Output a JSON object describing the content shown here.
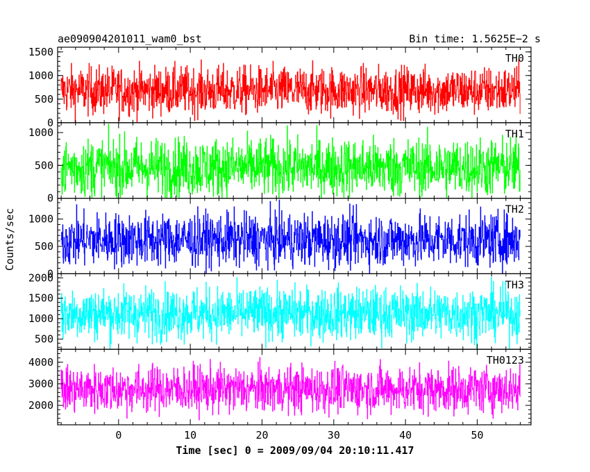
{
  "header": {
    "title": "ae090904201011_wam0_bst",
    "bin_time": "Bin time: 1.5625E−2 s"
  },
  "chart_data": {
    "type": "line",
    "xlabel": "Time [sec] 0 = 2009/09/04 20:10:11.417",
    "ylabel": "Counts/sec",
    "xlim": [
      -8.5,
      57.5
    ],
    "x_range_data": [
      -8,
      56
    ],
    "x_ticks": [
      0,
      10,
      20,
      30,
      40,
      50
    ],
    "x_tick_labels": [
      "0",
      "10",
      "20",
      "30",
      "40",
      "50"
    ],
    "panels": [
      {
        "name": "TH0",
        "color": "#ff0000",
        "ylim": [
          0,
          1600
        ],
        "y_ticks": [
          0,
          500,
          1000,
          1500
        ],
        "y_tick_labels": [
          "0",
          "500",
          "1000",
          "1500"
        ],
        "mean": 680,
        "spread": 260
      },
      {
        "name": "TH1",
        "color": "#00ff00",
        "ylim": [
          0,
          1150
        ],
        "y_ticks": [
          0,
          500,
          1000
        ],
        "y_tick_labels": [
          "0",
          "500",
          "1000"
        ],
        "mean": 470,
        "spread": 230
      },
      {
        "name": "TH2",
        "color": "#0000ff",
        "ylim": [
          0,
          1380
        ],
        "y_ticks": [
          0,
          500,
          1000
        ],
        "y_tick_labels": [
          "0",
          "500",
          "1000"
        ],
        "mean": 620,
        "spread": 250
      },
      {
        "name": "TH3",
        "color": "#00ffff",
        "ylim": [
          250,
          2100
        ],
        "y_ticks": [
          500,
          1000,
          1500,
          2000
        ],
        "y_tick_labels": [
          "500",
          "1000",
          "1500",
          "2000"
        ],
        "mean": 1130,
        "spread": 330
      },
      {
        "name": "TH0123",
        "color": "#ff00ff",
        "ylim": [
          1100,
          4600
        ],
        "y_ticks": [
          2000,
          3000,
          4000
        ],
        "y_tick_labels": [
          "2000",
          "3000",
          "4000"
        ],
        "mean": 2750,
        "spread": 560
      }
    ]
  }
}
